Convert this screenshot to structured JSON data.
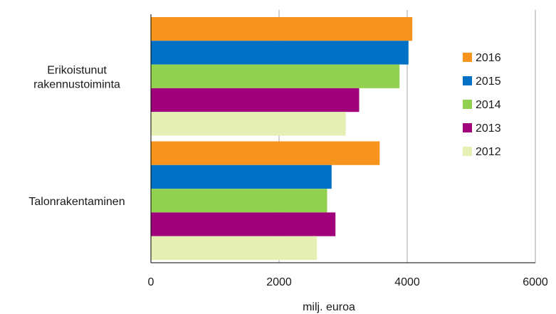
{
  "chart_data": {
    "type": "bar",
    "orientation": "horizontal",
    "categories": [
      [
        "Erikoistunut",
        "rakennustoiminta"
      ],
      [
        "Talonrakentaminen"
      ]
    ],
    "series": [
      {
        "name": "2016",
        "color": "#f7941d",
        "values": [
          4080,
          3570
        ]
      },
      {
        "name": "2015",
        "color": "#0072c6",
        "values": [
          4020,
          2820
        ]
      },
      {
        "name": "2014",
        "color": "#92d050",
        "values": [
          3880,
          2750
        ]
      },
      {
        "name": "2013",
        "color": "#a0007a",
        "values": [
          3250,
          2880
        ]
      },
      {
        "name": "2012",
        "color": "#e6f0b4",
        "values": [
          3040,
          2590
        ]
      }
    ],
    "xlabel": "milj. euroa",
    "xlim": [
      0,
      6000
    ],
    "xticks": [
      "0",
      "2000",
      "4000",
      "6000"
    ],
    "grid": "vertical",
    "legend_position": "right"
  }
}
